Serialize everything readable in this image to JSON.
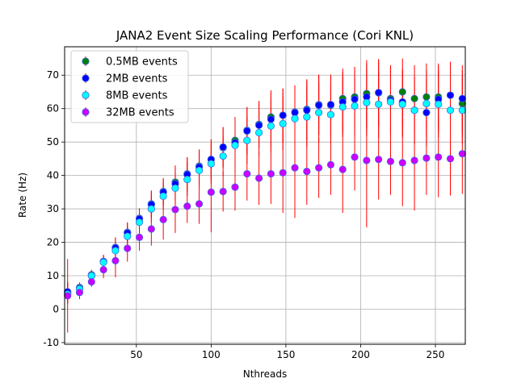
{
  "chart_data": {
    "type": "scatter",
    "title": "JANA2 Event Size Scaling Performance (Cori KNL)",
    "xlabel": "Nthreads",
    "ylabel": "Rate (Hz)",
    "xlim": [
      2,
      270
    ],
    "ylim": [
      -10.5,
      78.5
    ],
    "xticks": [
      50,
      100,
      150,
      200,
      250
    ],
    "yticks": [
      -10,
      0,
      10,
      20,
      30,
      40,
      50,
      60,
      70
    ],
    "grid": true,
    "legend_position": "top-left",
    "errorbar_color": "#ff0000",
    "series": [
      {
        "name": "0.5MB events",
        "color": "#008000",
        "edgecolor": "#4169e1",
        "points": [
          [
            4,
            5.0,
            3
          ],
          [
            12,
            6.5,
            1.5
          ],
          [
            20,
            10.3,
            1.5
          ],
          [
            28,
            14.3,
            2
          ],
          [
            36,
            18.5,
            3
          ],
          [
            44,
            23.0,
            3
          ],
          [
            52,
            27.2,
            3
          ],
          [
            60,
            31.5,
            4
          ],
          [
            68,
            35.2,
            4
          ],
          [
            76,
            38.0,
            5
          ],
          [
            84,
            40.5,
            5
          ],
          [
            92,
            42.8,
            5
          ],
          [
            100,
            44.8,
            6
          ],
          [
            108,
            48.3,
            6
          ],
          [
            116,
            50.5,
            7
          ],
          [
            124,
            53.5,
            7
          ],
          [
            132,
            55.3,
            7
          ],
          [
            140,
            57.5,
            8
          ],
          [
            148,
            58.0,
            8
          ],
          [
            156,
            59.0,
            8
          ],
          [
            164,
            59.8,
            9
          ],
          [
            172,
            61.2,
            9
          ],
          [
            180,
            61.0,
            9
          ],
          [
            188,
            63.0,
            9
          ],
          [
            196,
            63.5,
            9
          ],
          [
            204,
            64.5,
            10
          ],
          [
            212,
            64.7,
            10
          ],
          [
            220,
            63.0,
            10
          ],
          [
            228,
            65.0,
            10
          ],
          [
            236,
            63.0,
            10
          ],
          [
            244,
            63.5,
            10
          ],
          [
            252,
            63.5,
            10
          ],
          [
            260,
            64.0,
            10
          ],
          [
            268,
            61.5,
            10
          ]
        ]
      },
      {
        "name": "2MB events",
        "color": "#0000ff",
        "edgecolor": "#4169e1",
        "points": [
          [
            4,
            5.2,
            3
          ],
          [
            12,
            6.2,
            1.5
          ],
          [
            20,
            10.0,
            1.5
          ],
          [
            28,
            14.2,
            2
          ],
          [
            36,
            18.3,
            3
          ],
          [
            44,
            22.8,
            3
          ],
          [
            52,
            27.0,
            3
          ],
          [
            60,
            31.3,
            4
          ],
          [
            68,
            35.0,
            4
          ],
          [
            76,
            37.5,
            5
          ],
          [
            84,
            40.3,
            5
          ],
          [
            92,
            42.5,
            5
          ],
          [
            100,
            44.8,
            6
          ],
          [
            108,
            48.5,
            6
          ],
          [
            116,
            49.8,
            7
          ],
          [
            124,
            53.3,
            7
          ],
          [
            132,
            55.0,
            7
          ],
          [
            140,
            56.8,
            8
          ],
          [
            148,
            58.0,
            8
          ],
          [
            156,
            58.8,
            8
          ],
          [
            164,
            59.5,
            9
          ],
          [
            172,
            61.0,
            9
          ],
          [
            180,
            61.2,
            9
          ],
          [
            188,
            62.0,
            9
          ],
          [
            196,
            62.8,
            9
          ],
          [
            204,
            63.5,
            10
          ],
          [
            212,
            64.8,
            10
          ],
          [
            220,
            62.5,
            10
          ],
          [
            228,
            62.0,
            10
          ],
          [
            236,
            59.5,
            10
          ],
          [
            244,
            58.8,
            10
          ],
          [
            252,
            62.8,
            10
          ],
          [
            260,
            64.0,
            10
          ],
          [
            268,
            63.0,
            10
          ]
        ]
      },
      {
        "name": "8MB events",
        "color": "#00ffff",
        "edgecolor": "#4169e1",
        "points": [
          [
            4,
            4.5,
            3
          ],
          [
            12,
            6.0,
            1.5
          ],
          [
            20,
            10.0,
            1.5
          ],
          [
            28,
            14.0,
            2
          ],
          [
            36,
            17.5,
            3
          ],
          [
            44,
            21.8,
            3
          ],
          [
            52,
            26.0,
            3
          ],
          [
            60,
            30.0,
            4
          ],
          [
            68,
            33.8,
            4
          ],
          [
            76,
            36.2,
            5
          ],
          [
            84,
            38.8,
            5
          ],
          [
            92,
            41.5,
            5
          ],
          [
            100,
            43.5,
            6
          ],
          [
            108,
            45.8,
            6
          ],
          [
            116,
            49.0,
            7
          ],
          [
            124,
            50.5,
            7
          ],
          [
            132,
            52.8,
            7
          ],
          [
            140,
            54.8,
            8
          ],
          [
            148,
            55.5,
            8
          ],
          [
            156,
            57.0,
            8
          ],
          [
            164,
            57.5,
            9
          ],
          [
            172,
            58.8,
            9
          ],
          [
            180,
            58.2,
            9
          ],
          [
            188,
            60.5,
            9
          ],
          [
            196,
            60.8,
            9
          ],
          [
            204,
            61.8,
            10
          ],
          [
            212,
            61.3,
            10
          ],
          [
            220,
            62.0,
            10
          ],
          [
            228,
            61.3,
            10
          ],
          [
            236,
            59.5,
            10
          ],
          [
            244,
            61.5,
            10
          ],
          [
            252,
            61.3,
            10
          ],
          [
            260,
            59.5,
            10
          ],
          [
            268,
            59.5,
            10
          ]
        ]
      },
      {
        "name": "32MB events",
        "color": "#cc00ff",
        "edgecolor": "#4169e1",
        "points": [
          [
            4,
            4.0,
            11
          ],
          [
            12,
            5.0,
            2
          ],
          [
            20,
            8.2,
            1.5
          ],
          [
            28,
            11.8,
            2.5
          ],
          [
            36,
            14.5,
            5
          ],
          [
            44,
            18.2,
            4
          ],
          [
            52,
            21.5,
            4
          ],
          [
            60,
            24.0,
            5
          ],
          [
            68,
            26.8,
            6
          ],
          [
            76,
            29.8,
            7
          ],
          [
            84,
            30.8,
            5
          ],
          [
            92,
            31.5,
            6
          ],
          [
            100,
            35.0,
            12
          ],
          [
            108,
            35.2,
            6
          ],
          [
            116,
            36.5,
            7
          ],
          [
            124,
            40.5,
            8
          ],
          [
            132,
            39.2,
            8
          ],
          [
            140,
            40.5,
            9
          ],
          [
            148,
            40.8,
            12
          ],
          [
            156,
            42.3,
            15
          ],
          [
            164,
            41.2,
            10
          ],
          [
            172,
            42.3,
            9
          ],
          [
            180,
            43.2,
            9
          ],
          [
            188,
            41.8,
            13
          ],
          [
            196,
            45.5,
            10
          ],
          [
            204,
            44.5,
            20
          ],
          [
            212,
            44.8,
            12
          ],
          [
            220,
            44.2,
            10
          ],
          [
            228,
            43.8,
            13
          ],
          [
            236,
            44.5,
            15
          ],
          [
            244,
            45.2,
            11
          ],
          [
            252,
            45.5,
            12
          ],
          [
            260,
            45.0,
            11
          ],
          [
            268,
            46.5,
            12
          ]
        ]
      }
    ]
  }
}
